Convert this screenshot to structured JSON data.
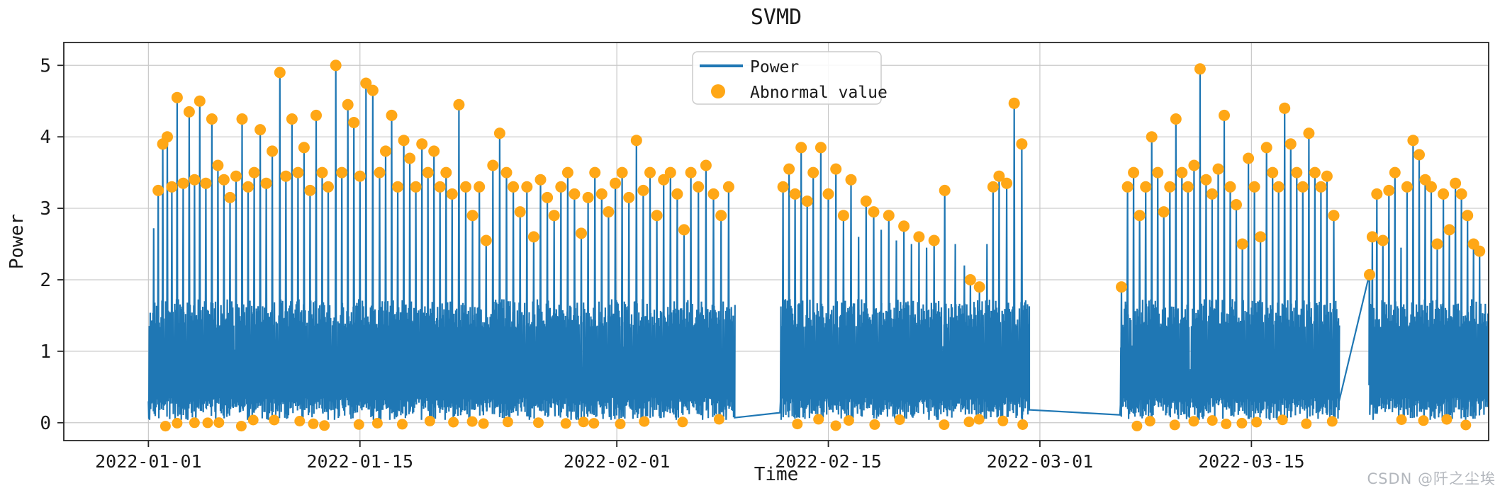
{
  "page": {
    "watermark": "CSDN @阡之尘埃",
    "background": "#ffffff"
  },
  "chart_data": {
    "type": "line+scatter",
    "title": "SVMD",
    "xlabel": "Time",
    "ylabel": "Power",
    "ylim": [
      -0.25,
      5.32
    ],
    "yticks": [
      0,
      1,
      2,
      3,
      4,
      5
    ],
    "x_epoch": "2022-01-01",
    "xlim_days": [
      -5.6,
      88.7
    ],
    "xticks": [
      {
        "label": "2022-01-01",
        "day": 0
      },
      {
        "label": "2022-01-15",
        "day": 14
      },
      {
        "label": "2022-02-01",
        "day": 31
      },
      {
        "label": "2022-02-15",
        "day": 45
      },
      {
        "label": "2022-03-01",
        "day": 59
      },
      {
        "label": "2022-03-15",
        "day": 73
      }
    ],
    "grid": true,
    "legend": {
      "position": "upper-center",
      "entries": [
        {
          "label": "Power",
          "type": "line",
          "color": "#1f77b4"
        },
        {
          "label": "Abnormal value",
          "type": "dot",
          "color": "#ffa716"
        }
      ]
    },
    "colors": {
      "line": "#1f77b4",
      "abnormal": "#ffa716",
      "grid": "#c9c9c9",
      "axis": "#262626",
      "text": "#1a1a1a"
    },
    "base_band": {
      "min": 0.05,
      "max": 1.73,
      "sample_step_days": 0.06
    },
    "noise_seed": 7,
    "abnormal_dot_threshold": 1.78,
    "low_anomaly": {
      "mean_interval_days": 1.15,
      "value_center": 0.0,
      "value_jitter": 0.1,
      "probability": 0.8
    },
    "blocks": [
      {
        "start": 0.0,
        "end": 38.8,
        "v_in": 0.3,
        "v_out": 0.07
      },
      {
        "start": 41.8,
        "end": 58.3,
        "v_in": 0.14,
        "v_out": 0.18
      },
      {
        "start": 64.3,
        "end": 78.8,
        "v_in": 0.11,
        "v_out": 0.3
      },
      {
        "start": 80.8,
        "end": 88.8,
        "v_in": 2.07,
        "v_out": 1.5
      }
    ],
    "spikes": [
      [
        0.35,
        2.72,
        1
      ],
      [
        0.65,
        3.25
      ],
      [
        0.95,
        3.9
      ],
      [
        1.25,
        4.0
      ],
      [
        1.55,
        3.3
      ],
      [
        1.9,
        4.55
      ],
      [
        2.3,
        3.35
      ],
      [
        2.7,
        4.35
      ],
      [
        3.05,
        3.4
      ],
      [
        3.4,
        4.5
      ],
      [
        3.8,
        3.35
      ],
      [
        4.2,
        4.25
      ],
      [
        4.6,
        3.6
      ],
      [
        5.0,
        3.4
      ],
      [
        5.4,
        3.15
      ],
      [
        5.8,
        3.45
      ],
      [
        6.2,
        4.25
      ],
      [
        6.6,
        3.3
      ],
      [
        7.0,
        3.5
      ],
      [
        7.4,
        4.1
      ],
      [
        7.8,
        3.35
      ],
      [
        8.2,
        3.8
      ],
      [
        8.7,
        4.9
      ],
      [
        9.1,
        3.45
      ],
      [
        9.5,
        4.25
      ],
      [
        9.9,
        3.5
      ],
      [
        10.3,
        3.85
      ],
      [
        10.7,
        3.25
      ],
      [
        11.1,
        4.3
      ],
      [
        11.5,
        3.5
      ],
      [
        11.9,
        3.3
      ],
      [
        12.4,
        5.0
      ],
      [
        12.8,
        3.5
      ],
      [
        13.2,
        4.45
      ],
      [
        13.6,
        4.2
      ],
      [
        14.0,
        3.45
      ],
      [
        14.4,
        4.75
      ],
      [
        14.85,
        4.65
      ],
      [
        15.3,
        3.5
      ],
      [
        15.7,
        3.8
      ],
      [
        16.1,
        4.3
      ],
      [
        16.5,
        3.3
      ],
      [
        16.9,
        3.95
      ],
      [
        17.3,
        3.7
      ],
      [
        17.7,
        3.3
      ],
      [
        18.1,
        3.9
      ],
      [
        18.5,
        3.5
      ],
      [
        18.9,
        3.8
      ],
      [
        19.3,
        3.3
      ],
      [
        19.7,
        3.5
      ],
      [
        20.1,
        3.2
      ],
      [
        20.55,
        4.45
      ],
      [
        21.0,
        3.3
      ],
      [
        21.45,
        2.9
      ],
      [
        21.9,
        3.3
      ],
      [
        22.35,
        2.55
      ],
      [
        22.8,
        3.6
      ],
      [
        23.25,
        4.05
      ],
      [
        23.7,
        3.5
      ],
      [
        24.15,
        3.3
      ],
      [
        24.6,
        2.95
      ],
      [
        25.05,
        3.3
      ],
      [
        25.5,
        2.6
      ],
      [
        25.95,
        3.4
      ],
      [
        26.4,
        3.15
      ],
      [
        26.85,
        2.9
      ],
      [
        27.3,
        3.3
      ],
      [
        27.75,
        3.5
      ],
      [
        28.2,
        3.2
      ],
      [
        28.65,
        2.65
      ],
      [
        29.1,
        3.15
      ],
      [
        29.55,
        3.5
      ],
      [
        30.0,
        3.2
      ],
      [
        30.45,
        2.95
      ],
      [
        30.9,
        3.35
      ],
      [
        31.35,
        3.5
      ],
      [
        31.8,
        3.15
      ],
      [
        32.3,
        3.95
      ],
      [
        32.75,
        3.25
      ],
      [
        33.2,
        3.5
      ],
      [
        33.65,
        2.9
      ],
      [
        34.1,
        3.4
      ],
      [
        34.55,
        3.5
      ],
      [
        35.0,
        3.2
      ],
      [
        35.45,
        2.7
      ],
      [
        35.9,
        3.5
      ],
      [
        36.4,
        3.3
      ],
      [
        36.9,
        3.6
      ],
      [
        37.4,
        3.2
      ],
      [
        37.9,
        2.9
      ],
      [
        38.4,
        3.3
      ],
      [
        42.0,
        3.3
      ],
      [
        42.4,
        3.55
      ],
      [
        42.8,
        3.2
      ],
      [
        43.2,
        3.85
      ],
      [
        43.6,
        3.1
      ],
      [
        44.0,
        3.5
      ],
      [
        44.5,
        3.85
      ],
      [
        45.0,
        3.2
      ],
      [
        45.5,
        3.55
      ],
      [
        46.0,
        2.9
      ],
      [
        46.5,
        3.4
      ],
      [
        47.0,
        2.6,
        1
      ],
      [
        47.5,
        3.1
      ],
      [
        48.0,
        2.95
      ],
      [
        48.5,
        2.7,
        1
      ],
      [
        49.0,
        2.9
      ],
      [
        49.5,
        2.55,
        1
      ],
      [
        50.0,
        2.75
      ],
      [
        50.5,
        2.5,
        1
      ],
      [
        51.0,
        2.6
      ],
      [
        51.5,
        2.45,
        1
      ],
      [
        52.0,
        2.55
      ],
      [
        52.7,
        3.25
      ],
      [
        53.4,
        2.5,
        1
      ],
      [
        54.0,
        2.2,
        1
      ],
      [
        54.4,
        2.0
      ],
      [
        55.0,
        1.9
      ],
      [
        55.5,
        2.5,
        1
      ],
      [
        55.9,
        3.3
      ],
      [
        56.3,
        3.45
      ],
      [
        56.8,
        3.35
      ],
      [
        57.3,
        4.47
      ],
      [
        57.8,
        3.9
      ],
      [
        64.4,
        1.9
      ],
      [
        64.8,
        3.3
      ],
      [
        65.2,
        3.5
      ],
      [
        65.6,
        2.9
      ],
      [
        66.0,
        3.3
      ],
      [
        66.4,
        4.0
      ],
      [
        66.8,
        3.5
      ],
      [
        67.2,
        2.95
      ],
      [
        67.6,
        3.3
      ],
      [
        68.0,
        4.25
      ],
      [
        68.4,
        3.5
      ],
      [
        68.8,
        3.3
      ],
      [
        69.2,
        3.6
      ],
      [
        69.6,
        4.95
      ],
      [
        70.0,
        3.4
      ],
      [
        70.4,
        3.2
      ],
      [
        70.8,
        3.55
      ],
      [
        71.2,
        4.3
      ],
      [
        71.6,
        3.3
      ],
      [
        72.0,
        3.05
      ],
      [
        72.4,
        2.5
      ],
      [
        72.8,
        3.7
      ],
      [
        73.2,
        3.3
      ],
      [
        73.6,
        2.6
      ],
      [
        74.0,
        3.85
      ],
      [
        74.4,
        3.5
      ],
      [
        74.8,
        3.3
      ],
      [
        75.2,
        4.4
      ],
      [
        75.6,
        3.9
      ],
      [
        76.0,
        3.5
      ],
      [
        76.4,
        3.3
      ],
      [
        76.8,
        4.05
      ],
      [
        77.2,
        3.5
      ],
      [
        77.6,
        3.3
      ],
      [
        78.0,
        3.45
      ],
      [
        78.45,
        2.9
      ],
      [
        80.82,
        2.07
      ],
      [
        81.0,
        2.6
      ],
      [
        81.3,
        3.2
      ],
      [
        81.7,
        2.55
      ],
      [
        82.1,
        3.25
      ],
      [
        82.5,
        3.5
      ],
      [
        82.9,
        2.45,
        1
      ],
      [
        83.3,
        3.3
      ],
      [
        83.7,
        3.95
      ],
      [
        84.1,
        3.75
      ],
      [
        84.5,
        3.4
      ],
      [
        84.9,
        3.3
      ],
      [
        85.3,
        2.5
      ],
      [
        85.7,
        3.2
      ],
      [
        86.1,
        2.7
      ],
      [
        86.5,
        3.35
      ],
      [
        86.9,
        3.2
      ],
      [
        87.3,
        2.9
      ],
      [
        87.7,
        2.5
      ],
      [
        88.1,
        2.4
      ]
    ]
  }
}
